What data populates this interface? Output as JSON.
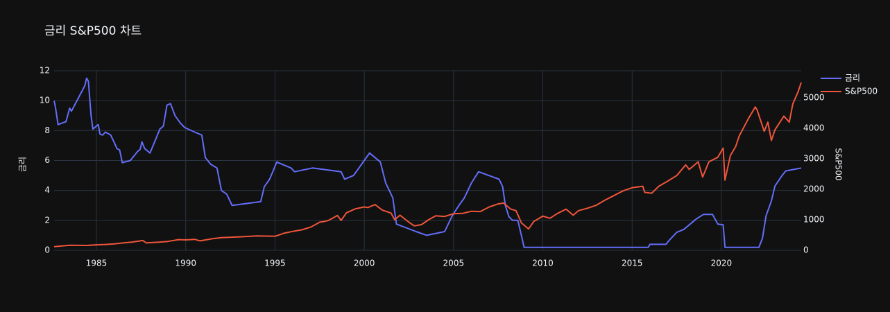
{
  "chart_data": {
    "type": "line",
    "title": "금리 S&P500 차트",
    "y_label": "금리",
    "y2_label": "S&P500",
    "xlim": [
      1982.63,
      2024.47
    ],
    "xticks": [
      1985,
      1990,
      1995,
      2000,
      2005,
      2010,
      2015,
      2020
    ],
    "ylim": [
      0,
      12
    ],
    "yticks": [
      0,
      2,
      4,
      6,
      8,
      10,
      12
    ],
    "y2lim": [
      0,
      5886
    ],
    "y2ticks": [
      0,
      1000,
      2000,
      3000,
      4000,
      5000
    ],
    "grid": true,
    "legend": "top-right",
    "series": [
      {
        "name": "금리",
        "color": "#636efa",
        "axis": "y",
        "x": [
          1982.63,
          1982.7,
          1982.85,
          1983.3,
          1983.5,
          1983.6,
          1984.35,
          1984.45,
          1984.55,
          1984.7,
          1984.8,
          1985.1,
          1985.2,
          1985.35,
          1985.5,
          1985.8,
          1986.0,
          1986.15,
          1986.3,
          1986.45,
          1986.9,
          1987.3,
          1987.45,
          1987.55,
          1987.7,
          1988.0,
          1988.35,
          1988.55,
          1988.75,
          1988.95,
          1989.15,
          1989.4,
          1989.7,
          1989.95,
          1990.5,
          1990.9,
          1991.1,
          1991.4,
          1991.75,
          1992.0,
          1992.3,
          1992.6,
          1994.2,
          1994.4,
          1994.7,
          1995.1,
          1995.9,
          1996.1,
          1997.1,
          1998.7,
          1998.9,
          1999.4,
          1999.7,
          2000.0,
          2000.3,
          2000.9,
          2001.2,
          2001.4,
          2001.6,
          2001.8,
          2002.9,
          2003.5,
          2004.5,
          2004.9,
          2005.3,
          2005.6,
          2006.0,
          2006.4,
          2007.55,
          2007.75,
          2007.9,
          2008.1,
          2008.3,
          2008.6,
          2008.8,
          2008.95,
          2015.9,
          2016.0,
          2016.9,
          2017.1,
          2017.5,
          2017.9,
          2018.2,
          2018.6,
          2019.0,
          2019.5,
          2019.8,
          2020.1,
          2020.2,
          2022.1,
          2022.3,
          2022.5,
          2022.8,
          2023.0,
          2023.4,
          2023.6,
          2024.47
        ],
        "values": [
          10.0,
          9.6,
          8.4,
          8.6,
          9.5,
          9.3,
          11.0,
          11.5,
          11.3,
          9.0,
          8.1,
          8.4,
          7.75,
          7.7,
          7.9,
          7.7,
          7.2,
          6.8,
          6.7,
          5.85,
          6.0,
          6.6,
          6.75,
          7.25,
          6.8,
          6.5,
          7.5,
          8.1,
          8.3,
          9.7,
          9.8,
          9.0,
          8.5,
          8.2,
          7.9,
          7.7,
          6.2,
          5.75,
          5.5,
          4.0,
          3.75,
          3.0,
          3.25,
          4.25,
          4.75,
          5.9,
          5.5,
          5.25,
          5.5,
          5.25,
          4.75,
          5.0,
          5.5,
          6.0,
          6.5,
          5.9,
          4.5,
          4.0,
          3.5,
          1.75,
          1.25,
          1.0,
          1.25,
          2.25,
          3.0,
          3.5,
          4.5,
          5.25,
          4.75,
          4.25,
          3.0,
          2.25,
          2.0,
          2.0,
          1.0,
          0.2,
          0.2,
          0.4,
          0.4,
          0.7,
          1.2,
          1.4,
          1.7,
          2.1,
          2.4,
          2.4,
          1.75,
          1.7,
          0.2,
          0.2,
          0.8,
          2.3,
          3.3,
          4.3,
          5.0,
          5.3,
          5.5
        ]
      },
      {
        "name": "S&P500",
        "color": "#ef553b",
        "axis": "y2",
        "x": [
          1982.63,
          1983.5,
          1984.5,
          1985.0,
          1985.5,
          1986.0,
          1986.5,
          1987.0,
          1987.6,
          1987.8,
          1988.0,
          1988.5,
          1989.0,
          1989.6,
          1990.0,
          1990.5,
          1990.8,
          1991.0,
          1991.5,
          1992.0,
          1993.0,
          1994.0,
          1995.0,
          1995.5,
          1996.0,
          1996.5,
          1997.0,
          1997.5,
          1997.8,
          1998.0,
          1998.5,
          1998.7,
          1999.0,
          1999.5,
          2000.0,
          2000.2,
          2000.6,
          2001.0,
          2001.5,
          2001.7,
          2002.0,
          2002.5,
          2002.8,
          2003.2,
          2003.6,
          2004.0,
          2004.5,
          2005.0,
          2005.5,
          2006.0,
          2006.5,
          2007.0,
          2007.5,
          2007.8,
          2008.2,
          2008.5,
          2008.8,
          2009.2,
          2009.5,
          2010.0,
          2010.4,
          2010.8,
          2011.3,
          2011.7,
          2012.0,
          2012.5,
          2013.0,
          2013.5,
          2014.0,
          2014.5,
          2015.0,
          2015.6,
          2015.7,
          2016.1,
          2016.5,
          2017.0,
          2017.5,
          2018.0,
          2018.2,
          2018.7,
          2018.95,
          2019.3,
          2019.8,
          2020.1,
          2020.2,
          2020.5,
          2020.8,
          2021.0,
          2021.5,
          2021.9,
          2022.0,
          2022.4,
          2022.6,
          2022.8,
          2023.0,
          2023.5,
          2023.8,
          2024.0,
          2024.3,
          2024.47
        ],
        "values": [
          120,
          165,
          160,
          180,
          190,
          210,
          240,
          270,
          320,
          240,
          250,
          265,
          290,
          350,
          340,
          360,
          310,
          330,
          380,
          415,
          440,
          470,
          460,
          560,
          620,
          670,
          760,
          920,
          950,
          980,
          1140,
          980,
          1230,
          1360,
          1420,
          1400,
          1500,
          1320,
          1220,
          1000,
          1150,
          920,
          800,
          840,
          1000,
          1130,
          1110,
          1200,
          1210,
          1280,
          1270,
          1420,
          1520,
          1550,
          1350,
          1300,
          900,
          700,
          950,
          1120,
          1050,
          1200,
          1350,
          1150,
          1300,
          1380,
          1480,
          1650,
          1800,
          1950,
          2050,
          2100,
          1900,
          1870,
          2100,
          2270,
          2450,
          2800,
          2650,
          2900,
          2400,
          2900,
          3050,
          3350,
          2300,
          3100,
          3400,
          3750,
          4300,
          4700,
          4600,
          3900,
          4200,
          3600,
          3950,
          4400,
          4200,
          4800,
          5200,
          5500
        ]
      }
    ]
  }
}
